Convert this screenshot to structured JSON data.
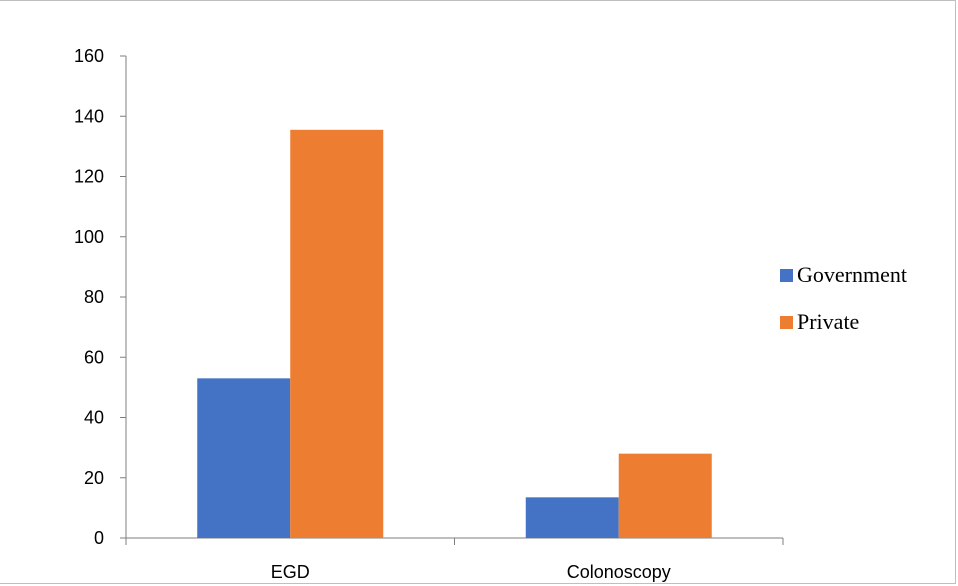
{
  "colors": {
    "government": "#4472c4",
    "private": "#ed7d31",
    "axis": "#7f7f7f"
  },
  "chart_data": {
    "type": "bar",
    "categories": [
      "EGD",
      "Colonoscopy"
    ],
    "series": [
      {
        "name": "Government",
        "values": [
          53,
          13.5
        ]
      },
      {
        "name": "Private",
        "values": [
          135.5,
          28
        ]
      }
    ],
    "yticks": [
      "0",
      "20",
      "40",
      "60",
      "80",
      "100",
      "120",
      "140",
      "160"
    ],
    "ylim": [
      0,
      160
    ],
    "grid": false,
    "legend": "right"
  }
}
